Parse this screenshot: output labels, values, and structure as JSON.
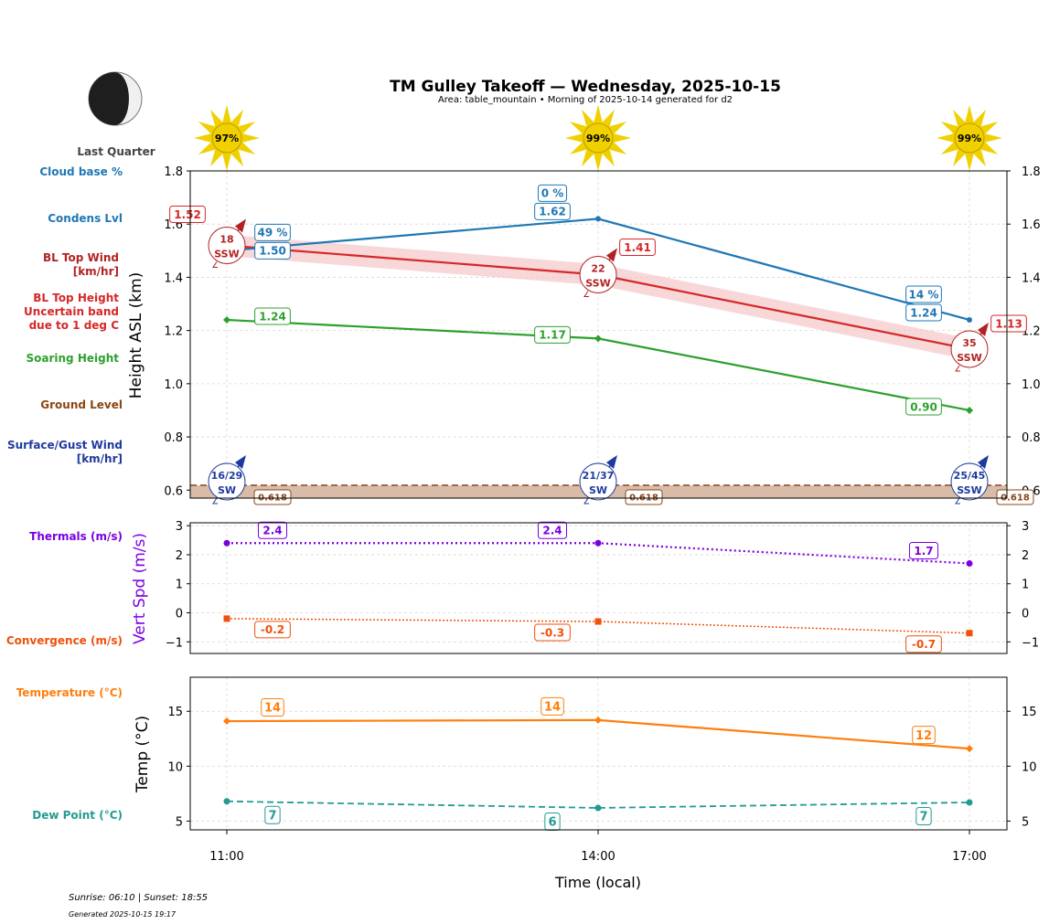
{
  "header": {
    "title": "TM Gulley Takeoff — Wednesday, 2025-10-15",
    "subtitle": "Area: table_mountain • Morning of 2025-10-14 generated for d2",
    "moon_phase": "Last Quarter",
    "sunrise_sunset": "Sunrise: 06:10 | Sunset: 18:55",
    "generated": "Generated 2025-10-15 19:17"
  },
  "colors": {
    "condens": "#1f77b4",
    "bl_top": "#d62728",
    "bl_band": "#f4c6c6",
    "soaring": "#2ca02c",
    "ground": "#8b4513",
    "ground_fill": "#d9bca8",
    "surface_wind": "#1f3a9e",
    "thermals": "#7b00e0",
    "convergence": "#f0500a",
    "temperature": "#ff7f0e",
    "dewpoint": "#239b93",
    "sun": "#f0d000"
  },
  "side_labels": {
    "cloud_base": "Cloud base %",
    "condens": "Condens Lvl",
    "bl_wind": [
      "BL Top Wind",
      "[km/hr]"
    ],
    "bl_height": [
      "BL Top Height",
      "Uncertain band",
      "due to 1 deg C"
    ],
    "soaring": "Soaring Height",
    "ground": "Ground Level",
    "surface_wind": [
      "Surface/Gust Wind",
      "[km/hr]"
    ],
    "thermals": "Thermals (m/s)",
    "convergence": "Convergence (m/s)",
    "temperature": "Temperature (°C)",
    "dewpoint": "Dew Point (°C)"
  },
  "chart_data": [
    {
      "type": "line",
      "panel": "height",
      "ylabel": "Height ASL (km)",
      "ylim": [
        0.57,
        1.8
      ],
      "yticks": [
        0.6,
        0.8,
        1.0,
        1.2,
        1.4,
        1.6,
        1.8
      ],
      "x": [
        "11:00",
        "14:00",
        "17:00"
      ],
      "sun_percent": [
        "97%",
        "99%",
        "99%"
      ],
      "cloud_base_pct": [
        "49 %",
        "0 %",
        "14 %"
      ],
      "condens_level": [
        1.5,
        1.62,
        1.24
      ],
      "condens_labels": [
        "1.50",
        "1.62",
        "1.24"
      ],
      "bl_top": [
        1.52,
        1.41,
        1.13
      ],
      "bl_top_labels": [
        "1.52",
        "1.41",
        "1.13"
      ],
      "bl_band": 0.04,
      "bl_wind_speed": [
        "18",
        "22",
        "35"
      ],
      "bl_wind_dir": [
        "SSW",
        "SSW",
        "SSW"
      ],
      "soaring_height": [
        1.24,
        1.17,
        0.9
      ],
      "soaring_labels": [
        "1.24",
        "1.17",
        "0.90"
      ],
      "ground_level": [
        0.618,
        0.618,
        0.618
      ],
      "ground_labels": [
        "0.618",
        "0.618",
        "0.618"
      ],
      "surface_wind": [
        "16/29",
        "21/37",
        "25/45"
      ],
      "surface_dir": [
        "SW",
        "SW",
        "SSW"
      ],
      "grid": true
    },
    {
      "type": "line",
      "panel": "vertical-speed",
      "ylabel": "Vert Spd (m/s)",
      "ylim": [
        -1.4,
        3.1
      ],
      "yticks": [
        -1,
        0,
        1,
        2,
        3
      ],
      "x": [
        "11:00",
        "14:00",
        "17:00"
      ],
      "thermals": [
        2.4,
        2.4,
        1.7
      ],
      "thermal_labels": [
        "2.4",
        "2.4",
        "1.7"
      ],
      "convergence": [
        -0.2,
        -0.3,
        -0.7
      ],
      "convergence_labels": [
        "-0.2",
        "-0.3",
        "-0.7"
      ],
      "grid": true
    },
    {
      "type": "line",
      "panel": "temperature",
      "ylabel": "Temp (°C)",
      "xlabel": "Time (local)",
      "ylim": [
        4.2,
        18.1
      ],
      "yticks": [
        5,
        10,
        15
      ],
      "x": [
        "11:00",
        "14:00",
        "17:00"
      ],
      "temperature": [
        14.1,
        14.2,
        11.6
      ],
      "temperature_labels": [
        "14",
        "14",
        "12"
      ],
      "dewpoint": [
        6.8,
        6.2,
        6.7
      ],
      "dewpoint_labels": [
        "7",
        "6",
        "7"
      ],
      "grid": true
    }
  ]
}
